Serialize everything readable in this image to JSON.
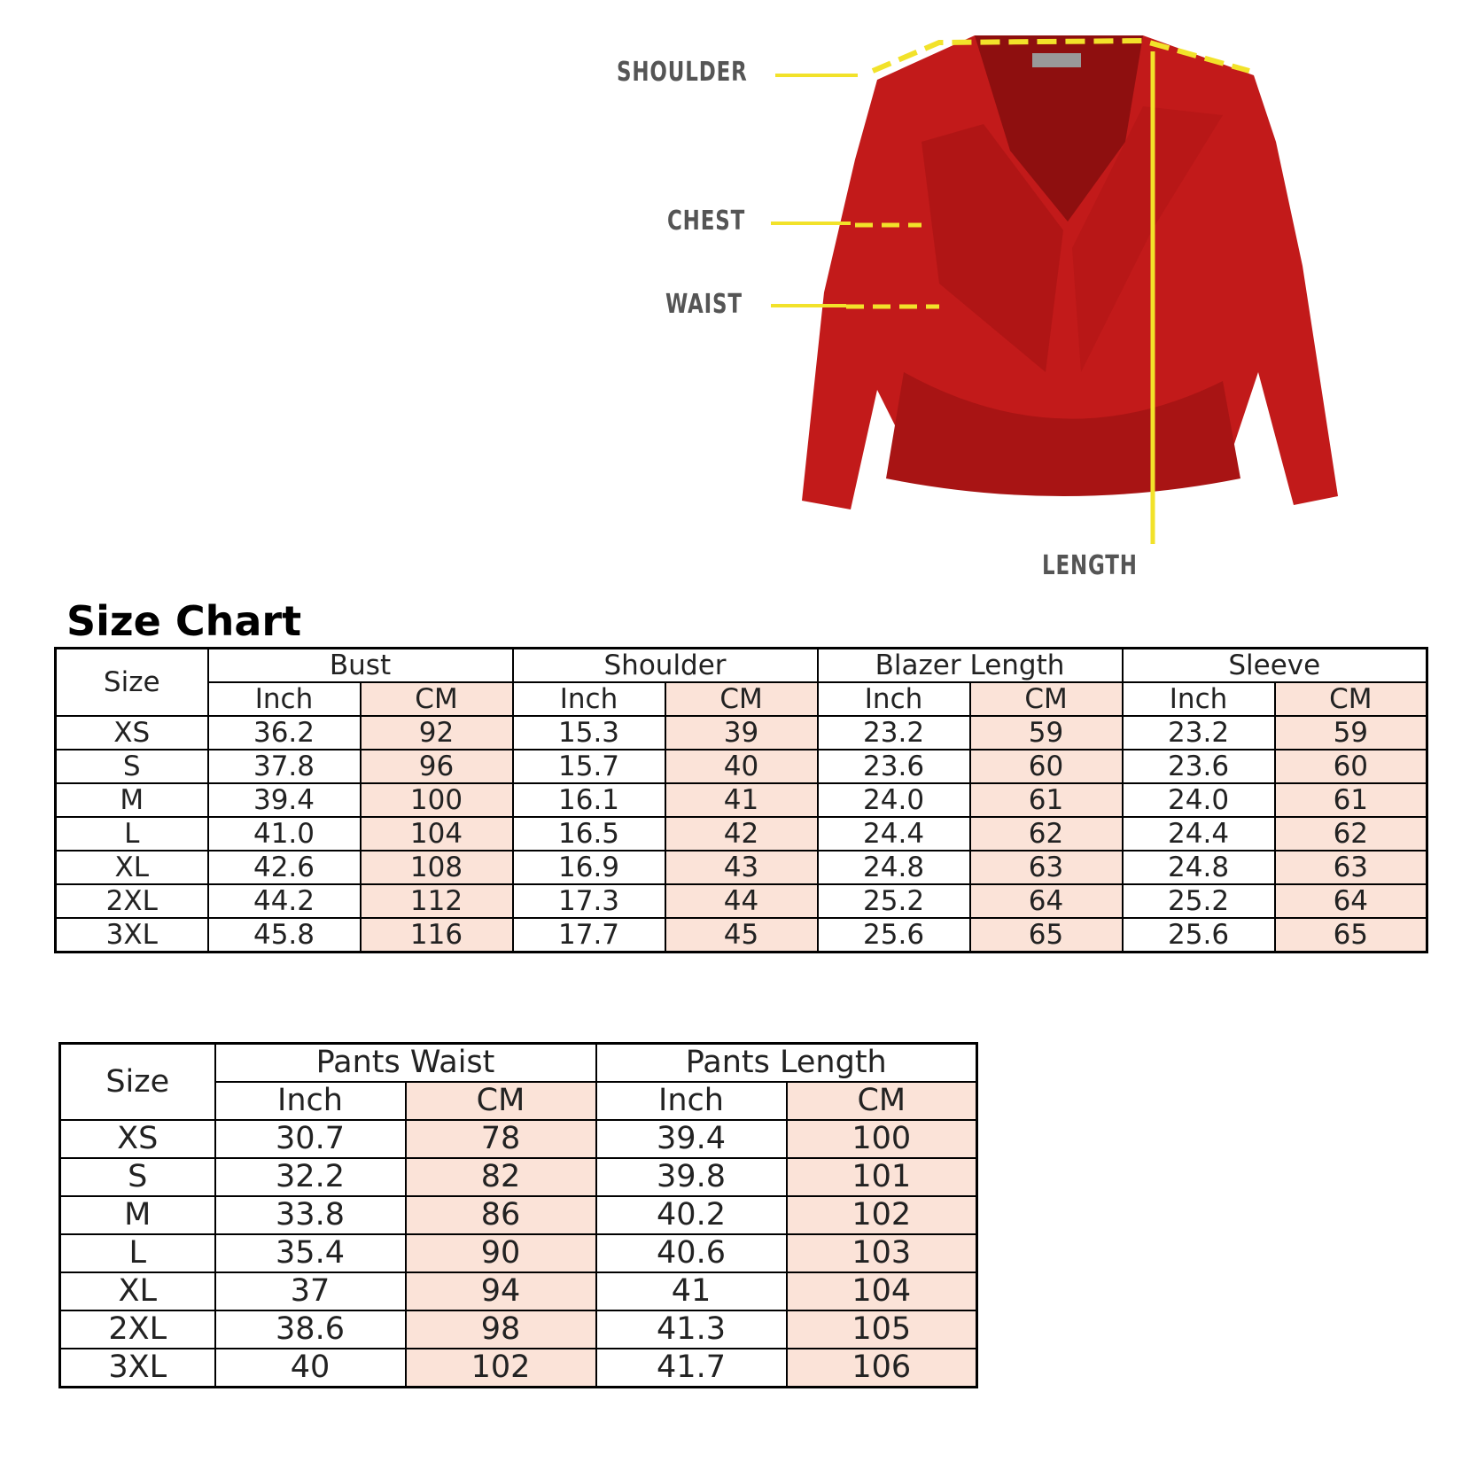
{
  "diagram": {
    "labels": {
      "shoulder": "SHOULDER",
      "chest": "CHEST",
      "waist": "WAIST",
      "length": "LENGTH"
    },
    "garment_color": "#c01818",
    "guide_color": "#f2e22a"
  },
  "title": "Size Chart",
  "blazer_table": {
    "size_header": "Size",
    "groups": [
      "Bust",
      "Shoulder",
      "Blazer Length",
      "Sleeve"
    ],
    "units": [
      "Inch",
      "CM"
    ],
    "rows": [
      [
        "XS",
        "36.2",
        "92",
        "15.3",
        "39",
        "23.2",
        "59",
        "23.2",
        "59"
      ],
      [
        "S",
        "37.8",
        "96",
        "15.7",
        "40",
        "23.6",
        "60",
        "23.6",
        "60"
      ],
      [
        "M",
        "39.4",
        "100",
        "16.1",
        "41",
        "24.0",
        "61",
        "24.0",
        "61"
      ],
      [
        "L",
        "41.0",
        "104",
        "16.5",
        "42",
        "24.4",
        "62",
        "24.4",
        "62"
      ],
      [
        "XL",
        "42.6",
        "108",
        "16.9",
        "43",
        "24.8",
        "63",
        "24.8",
        "63"
      ],
      [
        "2XL",
        "44.2",
        "112",
        "17.3",
        "44",
        "25.2",
        "64",
        "25.2",
        "64"
      ],
      [
        "3XL",
        "45.8",
        "116",
        "17.7",
        "45",
        "25.6",
        "65",
        "25.6",
        "65"
      ]
    ]
  },
  "pants_table": {
    "size_header": "Size",
    "groups": [
      "Pants Waist",
      "Pants Length"
    ],
    "units": [
      "Inch",
      "CM"
    ],
    "rows": [
      [
        "XS",
        "30.7",
        "78",
        "39.4",
        "100"
      ],
      [
        "S",
        "32.2",
        "82",
        "39.8",
        "101"
      ],
      [
        "M",
        "33.8",
        "86",
        "40.2",
        "102"
      ],
      [
        "L",
        "35.4",
        "90",
        "40.6",
        "103"
      ],
      [
        "XL",
        "37",
        "94",
        "41",
        "104"
      ],
      [
        "2XL",
        "38.6",
        "98",
        "41.3",
        "105"
      ],
      [
        "3XL",
        "40",
        "102",
        "41.7",
        "106"
      ]
    ]
  },
  "cm_cell_color": "#fbe3d8"
}
